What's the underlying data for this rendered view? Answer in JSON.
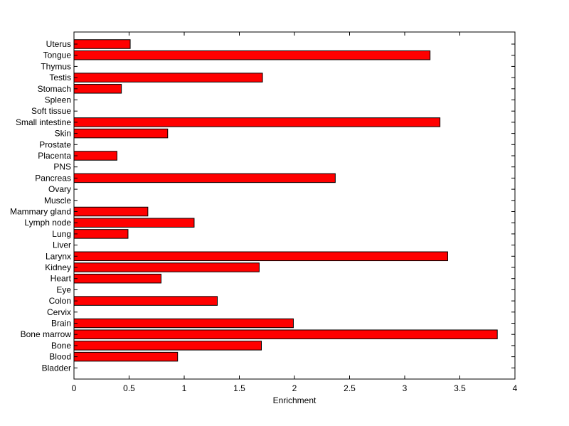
{
  "chart_data": {
    "type": "bar",
    "orientation": "horizontal",
    "title": "",
    "xlabel": "Enrichment",
    "ylabel": "",
    "xlim": [
      0,
      4
    ],
    "xticks": [
      "0",
      "0.5",
      "1",
      "1.5",
      "2",
      "2.5",
      "3",
      "3.5",
      "4"
    ],
    "grid": false,
    "bar_color": "#ff0000",
    "categories": [
      "Bladder",
      "Blood",
      "Bone",
      "Bone marrow",
      "Brain",
      "Cervix",
      "Colon",
      "Eye",
      "Heart",
      "Kidney",
      "Larynx",
      "Liver",
      "Lung",
      "Lymph node",
      "Mammary gland",
      "Muscle",
      "Ovary",
      "Pancreas",
      "PNS",
      "Placenta",
      "Prostate",
      "Skin",
      "Small intestine",
      "Soft tissue",
      "Spleen",
      "Stomach",
      "Testis",
      "Thymus",
      "Tongue",
      "Uterus"
    ],
    "values": [
      0,
      0.94,
      1.7,
      3.84,
      1.99,
      0,
      1.3,
      0,
      0.79,
      1.68,
      3.39,
      0,
      0.49,
      1.09,
      0.67,
      0,
      0,
      2.37,
      0,
      0.39,
      0,
      0.85,
      3.32,
      0,
      0,
      0.43,
      1.71,
      0,
      3.23,
      0.51
    ]
  }
}
